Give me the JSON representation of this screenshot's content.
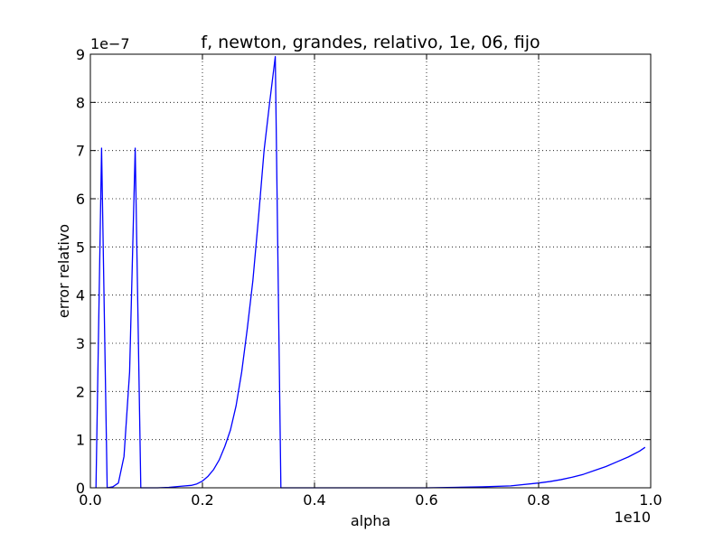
{
  "chart_data": {
    "type": "line",
    "title": "f, newton, grandes, relativo, 1e, 06, fijo",
    "xlabel": "alpha",
    "ylabel": "error relativo",
    "x_offset_label": "1e10",
    "y_offset_label": "1e−7",
    "xlim": [
      0.0,
      1.0
    ],
    "ylim": [
      0,
      9
    ],
    "x_ticks": [
      0.0,
      0.2,
      0.4,
      0.6,
      0.8,
      1.0
    ],
    "x_tick_labels": [
      "0.0",
      "0.2",
      "0.4",
      "0.6",
      "0.8",
      "1.0"
    ],
    "y_ticks": [
      0,
      1,
      2,
      3,
      4,
      5,
      6,
      7,
      8,
      9
    ],
    "y_tick_labels": [
      "0",
      "1",
      "2",
      "3",
      "4",
      "5",
      "6",
      "7",
      "8",
      "9"
    ],
    "grid": true,
    "line_color": "#0000ff",
    "x": [
      0.01,
      0.02,
      0.03,
      0.04,
      0.05,
      0.06,
      0.07,
      0.08,
      0.09,
      0.1,
      0.12,
      0.14,
      0.16,
      0.18,
      0.19,
      0.2,
      0.21,
      0.22,
      0.23,
      0.24,
      0.25,
      0.26,
      0.27,
      0.28,
      0.29,
      0.3,
      0.31,
      0.32,
      0.33,
      0.34,
      0.36,
      0.4,
      0.45,
      0.5,
      0.55,
      0.6,
      0.65,
      0.7,
      0.75,
      0.8,
      0.82,
      0.84,
      0.86,
      0.88,
      0.9,
      0.92,
      0.94,
      0.96,
      0.98,
      0.99
    ],
    "y": [
      0.0,
      7.05,
      0.0,
      0.02,
      0.1,
      0.65,
      2.4,
      7.05,
      0.0,
      0.0,
      0.0,
      0.01,
      0.03,
      0.05,
      0.08,
      0.14,
      0.24,
      0.38,
      0.58,
      0.86,
      1.2,
      1.7,
      2.4,
      3.3,
      4.3,
      5.6,
      7.0,
      8.0,
      8.95,
      0.0,
      0.0,
      0.0,
      0.0,
      0.0,
      0.0,
      0.0,
      0.01,
      0.02,
      0.04,
      0.1,
      0.13,
      0.17,
      0.22,
      0.28,
      0.36,
      0.44,
      0.54,
      0.64,
      0.76,
      0.84
    ]
  }
}
